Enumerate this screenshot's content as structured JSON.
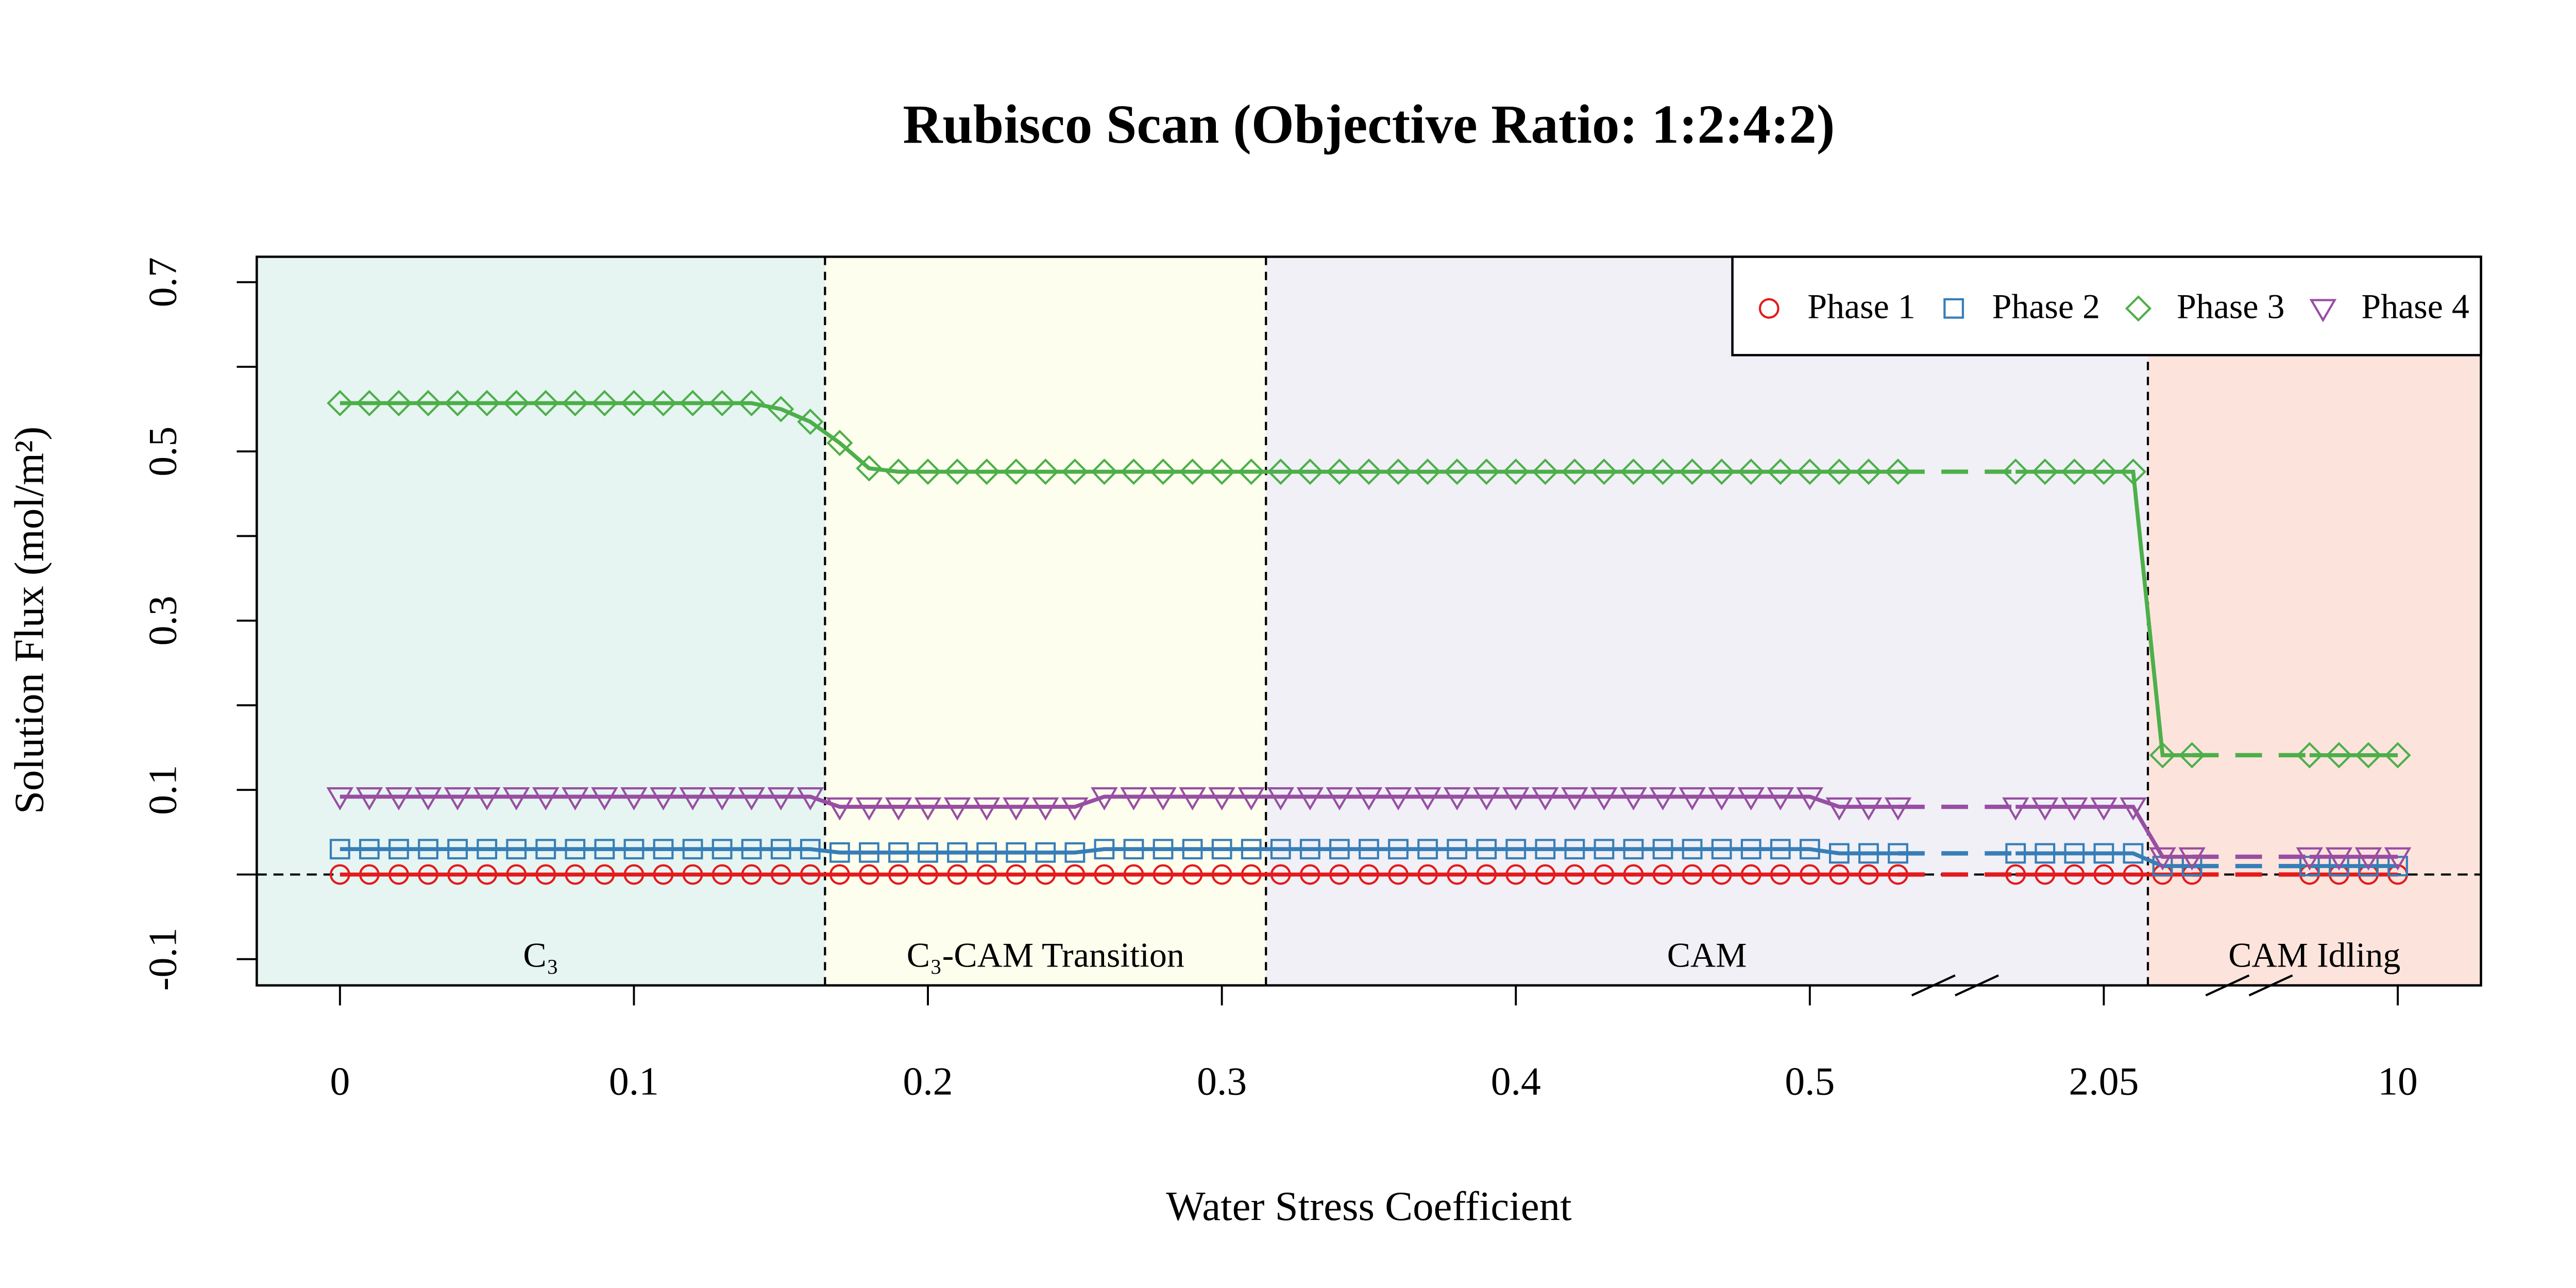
{
  "chart_data": {
    "type": "line",
    "title": "Rubisco Scan (Objective Ratio: 1:2:4:2)",
    "xlabel": "Water Stress Coefficient",
    "ylabel": "Solution Flux (mol/m²)",
    "categories": [
      "0",
      null,
      null,
      null,
      null,
      null,
      null,
      null,
      null,
      null,
      "0.1",
      null,
      null,
      null,
      null,
      null,
      null,
      null,
      null,
      null,
      "0.2",
      null,
      null,
      null,
      null,
      null,
      null,
      null,
      null,
      null,
      "0.3",
      null,
      null,
      null,
      null,
      null,
      null,
      null,
      null,
      null,
      "0.4",
      null,
      null,
      null,
      null,
      null,
      null,
      null,
      null,
      null,
      "0.5",
      null,
      null,
      null,
      null,
      null,
      null,
      null,
      null,
      null,
      "2.05",
      null,
      null,
      null,
      null,
      null,
      null,
      null,
      null,
      null,
      "10"
    ],
    "ylim": [
      -0.131,
      0.73
    ],
    "yticks": [
      -0.1,
      0.1,
      0.3,
      0.5,
      0.7
    ],
    "yminor_ticks": [
      0,
      0.2,
      0.4,
      0.6
    ],
    "hline": 0,
    "legend": "top-right",
    "regions": [
      {
        "label": "C₃",
        "color": "#e6f5f1",
        "first": 0,
        "last": 16
      },
      {
        "label": "C₃-CAM Transition",
        "color": "#fefeee",
        "first": 17,
        "last": 31
      },
      {
        "label": "CAM",
        "color": "#f0f0f6",
        "first": 32,
        "last": 61
      },
      {
        "label": "CAM Idling",
        "color": "#fce4dc",
        "first": 62,
        "last": 70
      }
    ],
    "series": [
      {
        "name": "Phase 1",
        "color": "#e41a1c",
        "marker": "circle",
        "values": [
          0,
          0,
          0,
          0,
          0,
          0,
          0,
          0,
          0,
          0,
          0,
          0,
          0,
          0,
          0,
          0,
          0,
          0,
          0,
          0,
          0,
          0,
          0,
          0,
          0,
          0,
          0,
          0,
          0,
          0,
          0,
          0,
          0,
          0,
          0,
          0,
          0,
          0,
          0,
          0,
          0,
          0,
          0,
          0,
          0,
          0,
          0,
          0,
          0,
          0,
          0,
          0,
          0,
          0,
          null,
          null,
          null,
          0,
          0,
          0,
          0,
          0,
          0,
          0,
          null,
          null,
          null,
          0,
          0,
          0,
          0
        ]
      },
      {
        "name": "Phase 2",
        "color": "#377eb8",
        "marker": "square",
        "values": [
          0.03,
          0.03,
          0.03,
          0.03,
          0.03,
          0.03,
          0.03,
          0.03,
          0.03,
          0.03,
          0.03,
          0.03,
          0.03,
          0.03,
          0.03,
          0.03,
          0.03,
          0.026,
          0.026,
          0.026,
          0.026,
          0.026,
          0.026,
          0.026,
          0.026,
          0.026,
          0.03,
          0.03,
          0.03,
          0.03,
          0.03,
          0.03,
          0.03,
          0.03,
          0.03,
          0.03,
          0.03,
          0.03,
          0.03,
          0.03,
          0.03,
          0.03,
          0.03,
          0.03,
          0.03,
          0.03,
          0.03,
          0.03,
          0.03,
          0.03,
          0.03,
          0.025,
          0.025,
          0.025,
          null,
          null,
          null,
          0.025,
          0.025,
          0.025,
          0.025,
          0.025,
          0.01,
          0.01,
          null,
          null,
          null,
          0.01,
          0.01,
          0.01,
          0.01
        ]
      },
      {
        "name": "Phase 3",
        "color": "#4daf4a",
        "marker": "diamond",
        "values": [
          0.557,
          0.557,
          0.557,
          0.557,
          0.557,
          0.557,
          0.557,
          0.557,
          0.557,
          0.557,
          0.557,
          0.557,
          0.557,
          0.557,
          0.557,
          0.55,
          0.535,
          0.51,
          0.48,
          0.476,
          0.476,
          0.476,
          0.476,
          0.476,
          0.476,
          0.476,
          0.476,
          0.476,
          0.476,
          0.476,
          0.476,
          0.476,
          0.476,
          0.476,
          0.476,
          0.476,
          0.476,
          0.476,
          0.476,
          0.476,
          0.476,
          0.476,
          0.476,
          0.476,
          0.476,
          0.476,
          0.476,
          0.476,
          0.476,
          0.476,
          0.476,
          0.476,
          0.476,
          0.476,
          null,
          null,
          null,
          0.476,
          0.476,
          0.476,
          0.476,
          0.476,
          0.141,
          0.141,
          null,
          null,
          null,
          0.141,
          0.141,
          0.141,
          0.141
        ]
      },
      {
        "name": "Phase 4",
        "color": "#984ea3",
        "marker": "triangle-down",
        "values": [
          0.092,
          0.092,
          0.092,
          0.092,
          0.092,
          0.092,
          0.092,
          0.092,
          0.092,
          0.092,
          0.092,
          0.092,
          0.092,
          0.092,
          0.092,
          0.092,
          0.092,
          0.08,
          0.08,
          0.08,
          0.08,
          0.08,
          0.08,
          0.08,
          0.08,
          0.08,
          0.092,
          0.092,
          0.092,
          0.092,
          0.092,
          0.092,
          0.092,
          0.092,
          0.092,
          0.092,
          0.092,
          0.092,
          0.092,
          0.092,
          0.092,
          0.092,
          0.092,
          0.092,
          0.092,
          0.092,
          0.092,
          0.092,
          0.092,
          0.092,
          0.092,
          0.08,
          0.08,
          0.08,
          null,
          null,
          null,
          0.08,
          0.08,
          0.08,
          0.08,
          0.08,
          0.021,
          0.021,
          null,
          null,
          null,
          0.021,
          0.021,
          0.021,
          0.021
        ]
      }
    ]
  }
}
